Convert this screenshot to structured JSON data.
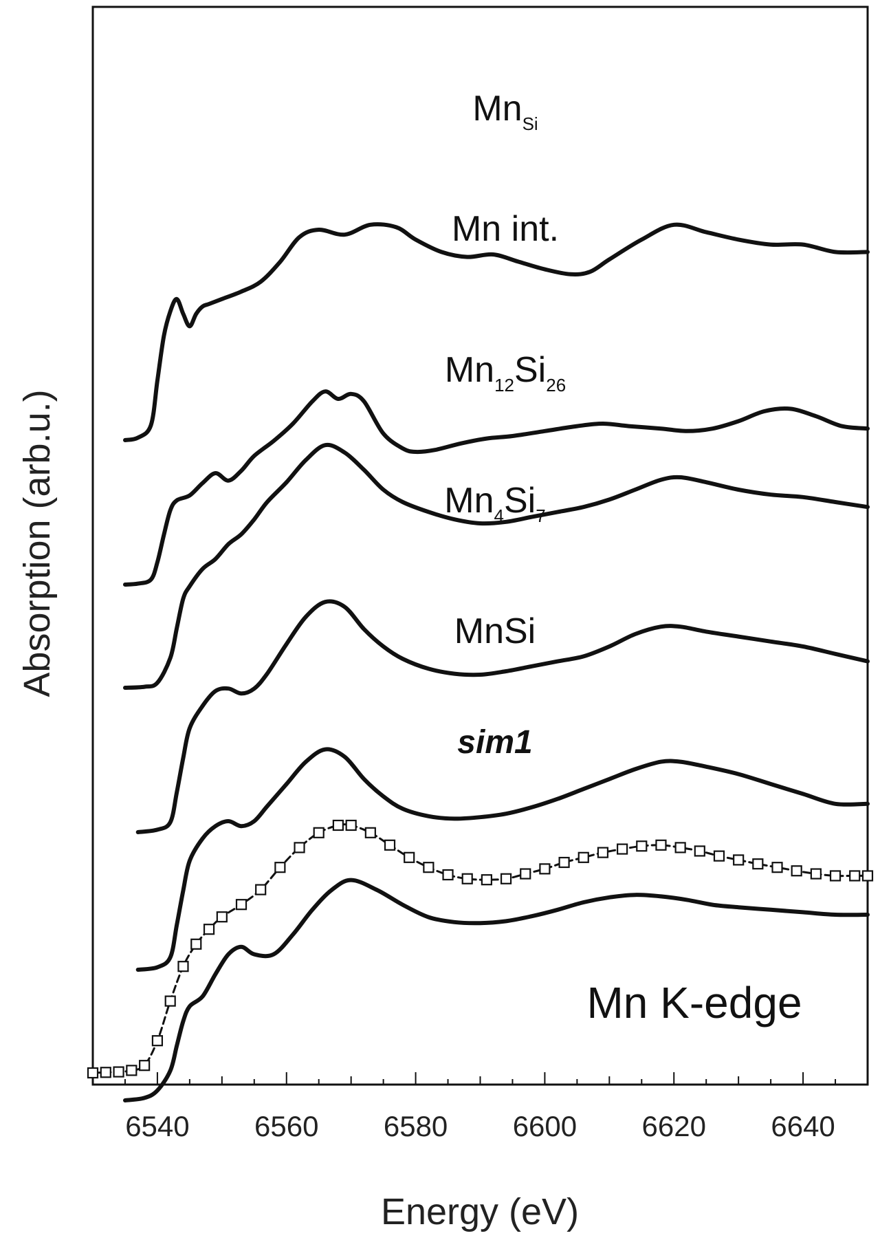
{
  "chart_data": {
    "type": "line",
    "title": "",
    "xlabel": "Energy (eV)",
    "ylabel": "Absorption (arb.u.)",
    "xlim": [
      6530,
      6650
    ],
    "xticks": [
      6540,
      6560,
      6580,
      6600,
      6620,
      6640
    ],
    "y_ticks_shown": false,
    "annotation": "Mn K-edge",
    "series": [
      {
        "label_main": "Mn",
        "label_sub": "Si",
        "x": [
          6535,
          6537,
          6539,
          6540,
          6541,
          6542,
          6543,
          6544,
          6545,
          6546,
          6547,
          6548,
          6550,
          6553,
          6556,
          6559,
          6562,
          6565,
          6569,
          6573,
          6577,
          6580,
          6584,
          6588,
          6592,
          6596,
          6600,
          6604,
          6607,
          6610,
          6615,
          6620,
          6625,
          6630,
          6635,
          6640,
          6645,
          6650
        ],
        "y": [
          0.0,
          0.05,
          0.3,
          1.2,
          2.1,
          2.6,
          2.85,
          2.55,
          2.3,
          2.55,
          2.7,
          2.75,
          2.85,
          3.0,
          3.2,
          3.6,
          4.1,
          4.25,
          4.15,
          4.35,
          4.3,
          4.05,
          3.8,
          3.7,
          3.75,
          3.6,
          3.45,
          3.35,
          3.4,
          3.65,
          4.05,
          4.35,
          4.2,
          4.05,
          3.95,
          3.95,
          3.8,
          3.8
        ]
      },
      {
        "label_main": "Mn int.",
        "label_sub": "",
        "x": [
          6535,
          6537,
          6539,
          6540,
          6541,
          6542,
          6543,
          6545,
          6547,
          6549,
          6551,
          6553,
          6555,
          6558,
          6561,
          6564,
          6566,
          6568,
          6570,
          6572,
          6575,
          6578,
          6580,
          6583,
          6587,
          6591,
          6595,
          6600,
          6605,
          6609,
          6613,
          6618,
          6622,
          6626,
          6630,
          6634,
          6638,
          6642,
          6646,
          6650
        ],
        "y": [
          0.0,
          0.02,
          0.1,
          0.45,
          1.0,
          1.5,
          1.7,
          1.8,
          2.05,
          2.25,
          2.1,
          2.3,
          2.6,
          2.9,
          3.25,
          3.7,
          3.9,
          3.75,
          3.85,
          3.7,
          3.05,
          2.75,
          2.68,
          2.72,
          2.85,
          2.95,
          3.0,
          3.1,
          3.2,
          3.25,
          3.2,
          3.15,
          3.1,
          3.15,
          3.3,
          3.5,
          3.55,
          3.4,
          3.2,
          3.15
        ]
      },
      {
        "label_main": "Mn",
        "label_sub": "12",
        "label_main2": "Si",
        "label_sub2": "26",
        "x": [
          6535,
          6538,
          6540,
          6542,
          6543,
          6544,
          6545,
          6547,
          6549,
          6551,
          6553,
          6555,
          6557,
          6560,
          6563,
          6566,
          6569,
          6572,
          6575,
          6578,
          6582,
          6586,
          6590,
          6594,
          6598,
          6602,
          6606,
          6610,
          6614,
          6618,
          6621,
          6625,
          6630,
          6635,
          6640,
          6645,
          6650
        ],
        "y": [
          0.0,
          0.02,
          0.1,
          0.6,
          1.2,
          1.8,
          2.05,
          2.4,
          2.6,
          2.9,
          3.1,
          3.4,
          3.75,
          4.15,
          4.6,
          4.9,
          4.75,
          4.4,
          4.0,
          3.75,
          3.55,
          3.4,
          3.32,
          3.35,
          3.45,
          3.55,
          3.65,
          3.8,
          4.0,
          4.2,
          4.25,
          4.15,
          4.0,
          3.9,
          3.85,
          3.75,
          3.65
        ]
      },
      {
        "label_main": "Mn",
        "label_sub": "4",
        "label_main2": "Si",
        "label_sub2": "7",
        "x": [
          6537,
          6540,
          6542,
          6543,
          6544,
          6545,
          6547,
          6549,
          6551,
          6553,
          6555,
          6557,
          6560,
          6563,
          6566,
          6569,
          6572,
          6575,
          6578,
          6582,
          6586,
          6590,
          6594,
          6598,
          6602,
          6606,
          6610,
          6614,
          6618,
          6621,
          6625,
          6630,
          6635,
          6640,
          6645,
          6650
        ],
        "y": [
          0.0,
          0.05,
          0.2,
          0.8,
          1.5,
          2.1,
          2.55,
          2.85,
          2.9,
          2.8,
          2.9,
          3.2,
          3.8,
          4.35,
          4.65,
          4.55,
          4.1,
          3.75,
          3.5,
          3.3,
          3.2,
          3.18,
          3.25,
          3.35,
          3.45,
          3.55,
          3.75,
          4.0,
          4.15,
          4.15,
          4.05,
          3.95,
          3.85,
          3.75,
          3.6,
          3.45
        ]
      },
      {
        "label_main": "MnSi",
        "label_sub": "",
        "x": [
          6537,
          6540,
          6542,
          6543,
          6544,
          6545,
          6547,
          6549,
          6551,
          6553,
          6555,
          6557,
          6560,
          6563,
          6566,
          6569,
          6572,
          6575,
          6578,
          6582,
          6586,
          6590,
          6594,
          6598,
          6602,
          6606,
          6610,
          6614,
          6618,
          6621,
          6625,
          6630,
          6635,
          6640,
          6645,
          6650
        ],
        "y": [
          0.0,
          0.05,
          0.25,
          0.9,
          1.6,
          2.2,
          2.65,
          2.9,
          3.0,
          2.9,
          3.0,
          3.3,
          3.75,
          4.2,
          4.45,
          4.3,
          3.85,
          3.5,
          3.25,
          3.1,
          3.05,
          3.08,
          3.15,
          3.28,
          3.45,
          3.65,
          3.85,
          4.05,
          4.2,
          4.2,
          4.1,
          3.95,
          3.75,
          3.55,
          3.35,
          3.35
        ]
      },
      {
        "label_main": "sim1",
        "label_sub": "",
        "x": [
          6535,
          6538,
          6540,
          6542,
          6543,
          6544,
          6545,
          6547,
          6549,
          6551,
          6553,
          6555,
          6558,
          6561,
          6564,
          6567,
          6570,
          6574,
          6578,
          6582,
          6586,
          6590,
          6594,
          6598,
          6602,
          6606,
          6610,
          6614,
          6618,
          6622,
          6626,
          6630,
          6635,
          6640,
          6645,
          6650
        ],
        "y": [
          0.0,
          0.05,
          0.2,
          0.6,
          1.1,
          1.6,
          1.9,
          2.1,
          2.55,
          2.95,
          3.1,
          2.95,
          2.95,
          3.35,
          3.85,
          4.25,
          4.45,
          4.25,
          3.95,
          3.7,
          3.6,
          3.58,
          3.62,
          3.72,
          3.85,
          4.0,
          4.1,
          4.15,
          4.12,
          4.05,
          3.95,
          3.9,
          3.85,
          3.8,
          3.75,
          3.75
        ]
      },
      {
        "label_main": "",
        "label_sub": "",
        "markers": "open-square",
        "x": [
          6530,
          6532,
          6534,
          6536,
          6538,
          6540,
          6542,
          6544,
          6546,
          6548,
          6550,
          6553,
          6556,
          6559,
          6562,
          6565,
          6568,
          6570,
          6573,
          6576,
          6579,
          6582,
          6585,
          6588,
          6591,
          6594,
          6597,
          6600,
          6603,
          6606,
          6609,
          6612,
          6615,
          6618,
          6621,
          6624,
          6627,
          6630,
          6633,
          6636,
          6639,
          6642,
          6645,
          6648,
          6650
        ],
        "y": [
          0.0,
          0.01,
          0.02,
          0.05,
          0.15,
          0.65,
          1.45,
          2.15,
          2.6,
          2.9,
          3.15,
          3.4,
          3.7,
          4.15,
          4.55,
          4.85,
          5.0,
          5.0,
          4.85,
          4.6,
          4.35,
          4.15,
          4.0,
          3.92,
          3.9,
          3.92,
          4.02,
          4.12,
          4.25,
          4.35,
          4.45,
          4.52,
          4.58,
          4.6,
          4.55,
          4.48,
          4.38,
          4.3,
          4.22,
          4.15,
          4.08,
          4.02,
          3.98,
          3.98,
          3.98
        ]
      }
    ]
  }
}
